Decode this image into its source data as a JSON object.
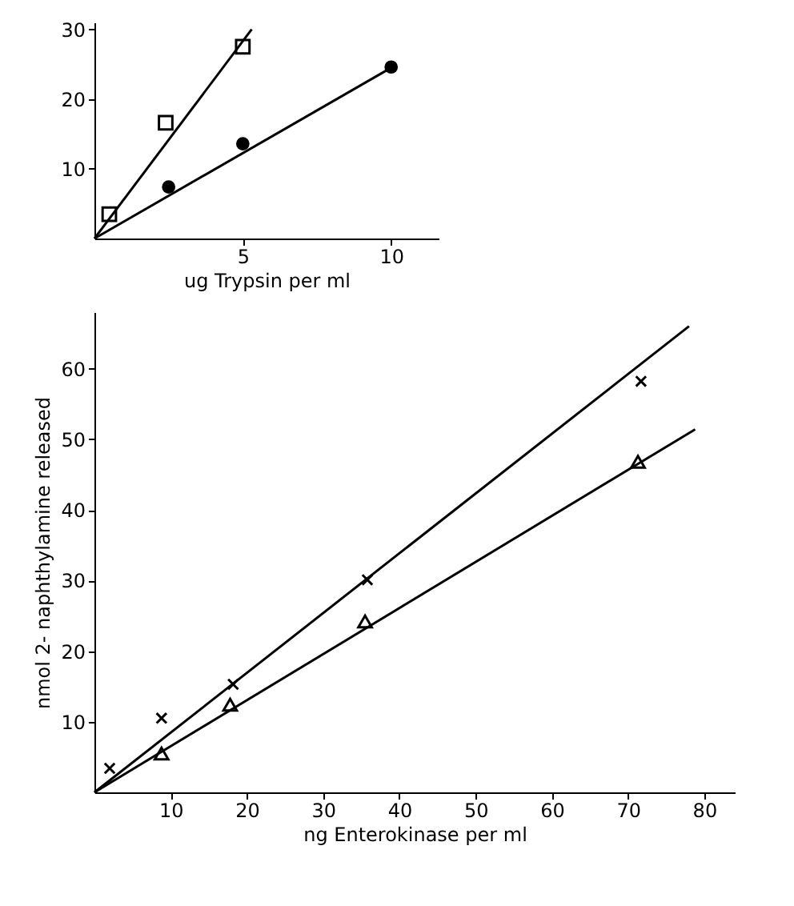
{
  "chart_data": [
    {
      "type": "scatter",
      "xlabel": "ug Trypsin per ml",
      "xlim": [
        0,
        11.6
      ],
      "ylim": [
        0,
        31
      ],
      "xticks": [
        5,
        10
      ],
      "yticks": [
        10,
        20,
        30
      ],
      "grid": false,
      "series": [
        {
          "color": "#000000",
          "marker": "square",
          "x": [
            0.5,
            2.4,
            5
          ],
          "values": [
            3.5,
            16.6,
            27.5
          ]
        },
        {
          "color": "#000000",
          "marker": "circle",
          "x": [
            2.5,
            5,
            10
          ],
          "values": [
            7.4,
            13.6,
            24.6
          ]
        },
        {
          "type": "line",
          "color": "#000000",
          "marker": "none",
          "x": [
            0,
            5.3
          ],
          "values": [
            0,
            30
          ]
        },
        {
          "type": "line",
          "color": "#000000",
          "marker": "none",
          "x": [
            0,
            10
          ],
          "values": [
            0,
            24.5
          ]
        }
      ]
    },
    {
      "type": "scatter",
      "xlabel": "ng Enterokinase per ml",
      "ylabel": "nmol 2- naphthylamine released",
      "xlim": [
        0,
        84
      ],
      "ylim": [
        0,
        68
      ],
      "xticks": [
        10,
        20,
        30,
        40,
        50,
        60,
        70,
        80
      ],
      "yticks": [
        10,
        20,
        30,
        40,
        50,
        60
      ],
      "grid": false,
      "series": [
        {
          "color": "#000000",
          "marker": "cross",
          "x": [
            2,
            8.8,
            18.2,
            35.8,
            71.7
          ],
          "values": [
            3.4,
            10.5,
            15.3,
            30.1,
            58.2
          ]
        },
        {
          "color": "#000000",
          "marker": "triangle",
          "x": [
            8.8,
            17.8,
            35.5,
            71.3
          ],
          "values": [
            5.5,
            12.4,
            24.2,
            46.8
          ]
        },
        {
          "type": "line",
          "color": "#000000",
          "marker": "none",
          "x": [
            0,
            78
          ],
          "values": [
            0,
            66
          ]
        },
        {
          "type": "line",
          "color": "#000000",
          "marker": "none",
          "x": [
            0,
            78.8
          ],
          "values": [
            0,
            51.4
          ]
        }
      ]
    }
  ]
}
